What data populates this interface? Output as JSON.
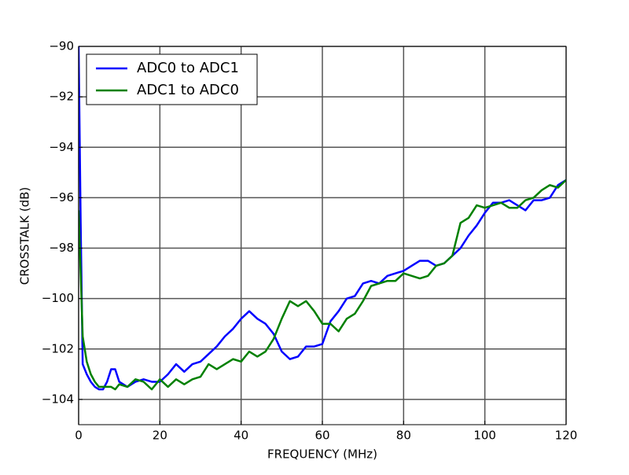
{
  "chart_data": {
    "type": "line",
    "xlabel": "FREQUENCY (MHz)",
    "ylabel": "CROSSTALK (dB)",
    "x": [
      0,
      0.5,
      1,
      2,
      3,
      4,
      5,
      6,
      7,
      8,
      9,
      10,
      12,
      14,
      16,
      18,
      20,
      22,
      24,
      26,
      28,
      30,
      32,
      34,
      36,
      38,
      40,
      42,
      44,
      46,
      48,
      50,
      52,
      54,
      56,
      58,
      60,
      62,
      64,
      66,
      68,
      70,
      72,
      74,
      76,
      78,
      80,
      82,
      84,
      86,
      88,
      90,
      92,
      94,
      96,
      98,
      100,
      102,
      104,
      106,
      108,
      110,
      112,
      114,
      116,
      118,
      120
    ],
    "series": [
      {
        "name": "ADC0 to ADC1",
        "color": "#0000ff",
        "values": [
          -90,
          -97,
          -102.6,
          -103.0,
          -103.3,
          -103.5,
          -103.6,
          -103.6,
          -103.3,
          -102.8,
          -102.8,
          -103.3,
          -103.5,
          -103.3,
          -103.2,
          -103.3,
          -103.3,
          -103.0,
          -102.6,
          -102.9,
          -102.6,
          -102.5,
          -102.2,
          -101.9,
          -101.5,
          -101.2,
          -100.8,
          -100.5,
          -100.8,
          -101.0,
          -101.4,
          -102.1,
          -102.4,
          -102.3,
          -101.9,
          -101.9,
          -101.8,
          -100.9,
          -100.5,
          -100.0,
          -99.9,
          -99.4,
          -99.3,
          -99.4,
          -99.1,
          -99.0,
          -98.9,
          -98.7,
          -98.5,
          -98.5,
          -98.7,
          -98.6,
          -98.3,
          -98.0,
          -97.5,
          -97.1,
          -96.6,
          -96.2,
          -96.2,
          -96.1,
          -96.3,
          -96.5,
          -96.1,
          -96.1,
          -96.0,
          -95.5,
          -95.3
        ]
      },
      {
        "name": "ADC1 to ADC0",
        "color": "#008000",
        "values": [
          -96.5,
          -99,
          -101.5,
          -102.5,
          -103.0,
          -103.3,
          -103.5,
          -103.5,
          -103.5,
          -103.5,
          -103.6,
          -103.4,
          -103.5,
          -103.2,
          -103.3,
          -103.6,
          -103.2,
          -103.5,
          -103.2,
          -103.4,
          -103.2,
          -103.1,
          -102.6,
          -102.8,
          -102.6,
          -102.4,
          -102.5,
          -102.1,
          -102.3,
          -102.1,
          -101.6,
          -100.8,
          -100.1,
          -100.3,
          -100.1,
          -100.5,
          -101.0,
          -101.0,
          -101.3,
          -100.8,
          -100.6,
          -100.1,
          -99.5,
          -99.4,
          -99.3,
          -99.3,
          -99.0,
          -99.1,
          -99.2,
          -99.1,
          -98.7,
          -98.6,
          -98.3,
          -97.0,
          -96.8,
          -96.3,
          -96.4,
          -96.3,
          -96.2,
          -96.4,
          -96.4,
          -96.1,
          -96.0,
          -95.7,
          -95.5,
          -95.6,
          -95.3
        ]
      }
    ],
    "xlim": [
      0,
      120
    ],
    "xticks": [
      0,
      20,
      40,
      60,
      80,
      100,
      120
    ],
    "ylim": [
      -105,
      -90
    ],
    "yticks": [
      {
        "value": -104,
        "label": "−104"
      },
      {
        "value": -102,
        "label": "−102"
      },
      {
        "value": -100,
        "label": "−100"
      },
      {
        "value": -98,
        "label": "−98"
      },
      {
        "value": -96,
        "label": "−96"
      },
      {
        "value": -94,
        "label": "−94"
      },
      {
        "value": -92,
        "label": "−92"
      },
      {
        "value": -90,
        "label": "−90"
      }
    ],
    "grid": true,
    "legend": "upper left"
  }
}
